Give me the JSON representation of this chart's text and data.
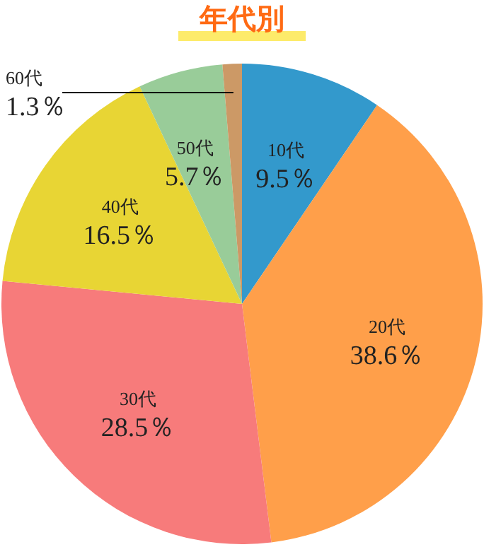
{
  "chart_data": {
    "type": "pie",
    "title": "年代別",
    "categories": [
      "10代",
      "20代",
      "30代",
      "40代",
      "50代",
      "60代"
    ],
    "values": [
      9.5,
      38.6,
      28.5,
      16.5,
      5.7,
      1.3
    ],
    "colors": [
      "#3399cc",
      "#ff9f4a",
      "#f77b7b",
      "#e8d534",
      "#99cc99",
      "#cc9966"
    ],
    "value_labels": [
      "9.5％",
      "38.6％",
      "28.5％",
      "16.5％",
      "5.7％",
      "1.3％"
    ]
  }
}
